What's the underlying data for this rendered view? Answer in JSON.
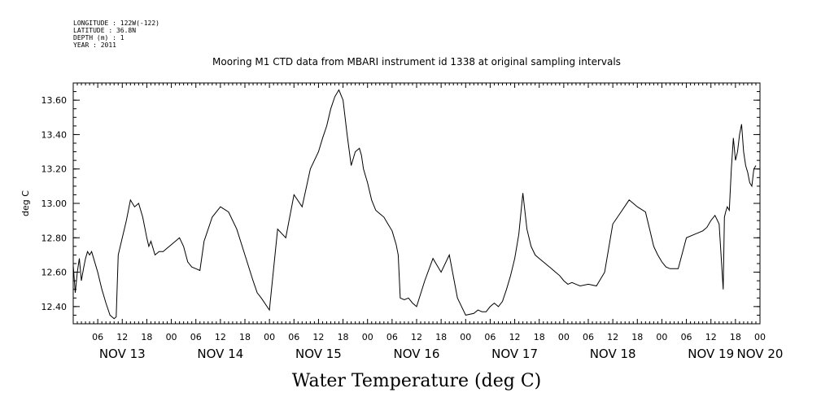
{
  "header": {
    "meta_lines": [
      "LONGITUDE : 122W(-122)",
      "LATITUDE : 36.8N",
      "DEPTH (m) : 1",
      "YEAR : 2011"
    ]
  },
  "chart_data": {
    "type": "line",
    "title": "Mooring M1 CTD data from MBARI instrument id 1338 at original sampling intervals",
    "xlabel": "Water Temperature (deg C)",
    "ylabel": "deg C",
    "ylim": [
      12.3,
      13.7
    ],
    "xlim_hours": [
      0,
      168
    ],
    "y_ticks": [
      "12.40",
      "12.60",
      "12.80",
      "13.00",
      "13.20",
      "13.40",
      "13.60"
    ],
    "hour_ticks": [
      "06",
      "12",
      "18",
      "00",
      "06",
      "12",
      "18",
      "00",
      "06",
      "12",
      "18",
      "00",
      "06",
      "12",
      "18",
      "00",
      "06",
      "12",
      "18",
      "00",
      "06",
      "12",
      "18",
      "00",
      "06",
      "12",
      "18",
      "00"
    ],
    "day_labels": [
      "NOV 13",
      "NOV 14",
      "NOV 15",
      "NOV 16",
      "NOV 17",
      "NOV 18",
      "NOV 19",
      "NOV 20"
    ],
    "grid": false,
    "series": [
      {
        "x": [
          0.0,
          0.5,
          1.0,
          1.5,
          2.0,
          2.5,
          3.0,
          3.5,
          4.0,
          4.5,
          5.0,
          6.0,
          7.0,
          8.0,
          9.0,
          10.0,
          10.5,
          11.0,
          12.0,
          13.0,
          14.0,
          15.0,
          16.0,
          17.0,
          18.0,
          18.5,
          19.0,
          20.0,
          21.0,
          22.0,
          23.0,
          24.0,
          25.0,
          26.0,
          27.0,
          28.0,
          29.0,
          30.0,
          31.0,
          32.0,
          34.0,
          36.0,
          38.0,
          40.0,
          42.0,
          44.0,
          45.0,
          46.0,
          48.0,
          50.0,
          52.0,
          54.0,
          56.0,
          58.0,
          60.0,
          61.0,
          62.0,
          63.0,
          64.0,
          65.0,
          66.0,
          67.0,
          68.0,
          69.0,
          70.0,
          70.5,
          71.0,
          72.0,
          73.0,
          74.0,
          75.0,
          76.0,
          77.0,
          78.0,
          78.5,
          79.0,
          79.5,
          80.0,
          81.0,
          82.0,
          83.0,
          84.0,
          86.0,
          88.0,
          90.0,
          92.0,
          94.0,
          96.0,
          98.0,
          99.0,
          100.0,
          101.0,
          102.0,
          103.0,
          104.0,
          105.0,
          106.0,
          107.0,
          108.0,
          109.0,
          110.0,
          111.0,
          112.0,
          113.0,
          114.0,
          115.0,
          116.0,
          117.0,
          118.0,
          119.0,
          120.0,
          121.0,
          122.0,
          123.0,
          124.0,
          126.0,
          128.0,
          130.0,
          132.0,
          134.0,
          136.0,
          138.0,
          140.0,
          141.0,
          142.0,
          143.0,
          144.0,
          145.0,
          146.0,
          148.0,
          150.0,
          152.0,
          154.0,
          155.0,
          156.0,
          157.0,
          158.0,
          159.0,
          159.3,
          159.6,
          160.0,
          160.5,
          161.0,
          161.5,
          162.0,
          162.5,
          163.0,
          163.5,
          164.0,
          164.5,
          165.0,
          165.5,
          166.0,
          166.5,
          167.0
        ],
        "y": [
          12.64,
          12.48,
          12.6,
          12.68,
          12.55,
          12.62,
          12.68,
          12.72,
          12.7,
          12.72,
          12.68,
          12.6,
          12.5,
          12.42,
          12.35,
          12.33,
          12.34,
          12.7,
          12.8,
          12.9,
          13.02,
          12.98,
          13.0,
          12.92,
          12.8,
          12.75,
          12.78,
          12.7,
          12.72,
          12.72,
          12.74,
          12.76,
          12.78,
          12.8,
          12.75,
          12.66,
          12.63,
          12.62,
          12.61,
          12.78,
          12.92,
          12.98,
          12.95,
          12.85,
          12.7,
          12.55,
          12.48,
          12.45,
          12.38,
          12.85,
          12.8,
          13.05,
          12.98,
          13.2,
          13.3,
          13.38,
          13.45,
          13.55,
          13.62,
          13.66,
          13.6,
          13.4,
          13.22,
          13.3,
          13.32,
          13.28,
          13.2,
          13.12,
          13.02,
          12.96,
          12.94,
          12.92,
          12.88,
          12.84,
          12.8,
          12.76,
          12.7,
          12.45,
          12.44,
          12.45,
          12.42,
          12.4,
          12.55,
          12.68,
          12.6,
          12.7,
          12.45,
          12.35,
          12.36,
          12.38,
          12.37,
          12.37,
          12.4,
          12.42,
          12.4,
          12.43,
          12.5,
          12.58,
          12.68,
          12.82,
          13.06,
          12.85,
          12.75,
          12.7,
          12.68,
          12.66,
          12.64,
          12.62,
          12.6,
          12.58,
          12.55,
          12.53,
          12.54,
          12.53,
          12.52,
          12.53,
          12.52,
          12.6,
          12.88,
          12.95,
          13.02,
          12.98,
          12.95,
          12.85,
          12.75,
          12.7,
          12.66,
          12.63,
          12.62,
          12.62,
          12.8,
          12.82,
          12.84,
          12.86,
          12.9,
          12.93,
          12.88,
          12.5,
          12.92,
          12.95,
          12.98,
          12.96,
          13.2,
          13.38,
          13.25,
          13.3,
          13.4,
          13.46,
          13.3,
          13.22,
          13.18,
          13.12,
          13.1,
          13.2,
          13.22
        ]
      }
    ]
  }
}
